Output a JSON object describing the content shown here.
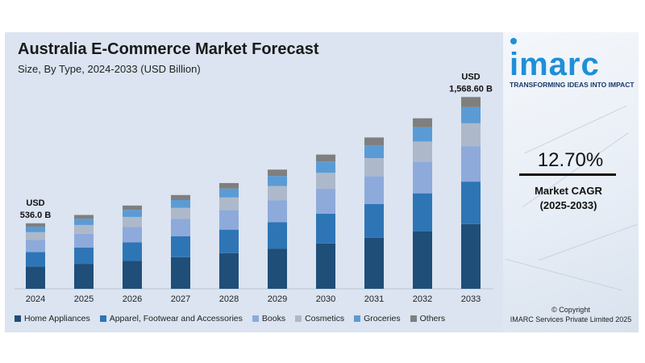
{
  "chart_data": {
    "type": "bar",
    "stacked": true,
    "title": "Australia E-Commerce Market Forecast",
    "subtitle": "Size, By Type, 2024-2033 (USD Billion)",
    "categories": [
      "2024",
      "2025",
      "2026",
      "2027",
      "2028",
      "2029",
      "2030",
      "2031",
      "2032",
      "2033"
    ],
    "totals": [
      536.0,
      604,
      681,
      767,
      865,
      975,
      1098,
      1238,
      1395,
      1568.6
    ],
    "series": [
      {
        "name": "Home Appliances",
        "color": "#1f4e79",
        "values": [
          181,
          204,
          230,
          259,
          292,
          329,
          371,
          418,
          471,
          529
        ]
      },
      {
        "name": "Apparel, Footwear and Accessories",
        "color": "#2e75b6",
        "values": [
          119,
          134,
          151,
          170,
          192,
          216,
          244,
          275,
          310,
          348
        ]
      },
      {
        "name": "Books",
        "color": "#8eaadb",
        "values": [
          99,
          112,
          126,
          142,
          160,
          180,
          203,
          229,
          258,
          290
        ]
      },
      {
        "name": "Cosmetics",
        "color": "#adb9ca",
        "values": [
          64,
          72,
          81,
          91,
          103,
          116,
          131,
          147,
          166,
          187
        ]
      },
      {
        "name": "Groceries",
        "color": "#5b9bd5",
        "values": [
          45,
          51,
          57,
          64,
          73,
          82,
          92,
          104,
          117,
          132
        ]
      },
      {
        "name": "Others",
        "color": "#7f7f7f",
        "values": [
          28,
          31,
          36,
          41,
          45,
          52,
          57,
          65,
          73,
          83
        ]
      }
    ],
    "annotations": [
      {
        "category": "2024",
        "line1": "USD",
        "line2": "536.0 B"
      },
      {
        "category": "2033",
        "line1": "USD",
        "line2": "1,568.60 B"
      }
    ],
    "ylim": [
      0,
      1650
    ],
    "grid": false,
    "legend": "bottom"
  },
  "brand": {
    "logo": "imarc",
    "tagline": "TRANSFORMING IDEAS INTO IMPACT"
  },
  "cagr": {
    "value": "12.70%",
    "label1": "Market CAGR",
    "label2": "(2025-2033)"
  },
  "copyright": {
    "line1": "© Copyright",
    "line2": "IMARC Services Private Limited 2025"
  }
}
